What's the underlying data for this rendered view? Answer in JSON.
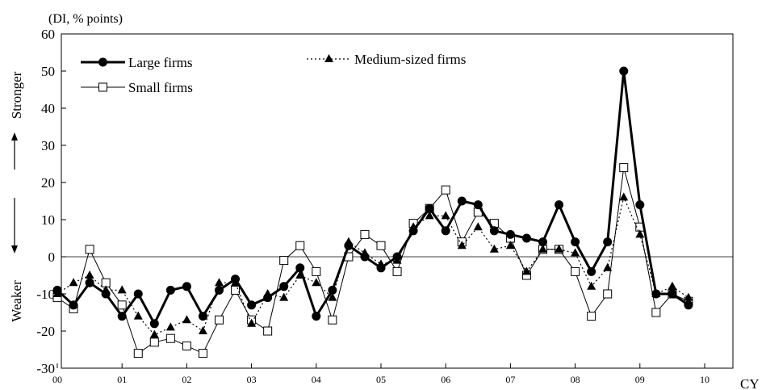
{
  "chart_data": {
    "type": "line",
    "unit_label": "(DI, % points)",
    "xlabel": "CY",
    "ylabel_top": "Stronger",
    "ylabel_bottom": "Weaker",
    "ylim": [
      -30,
      60
    ],
    "yticks": [
      -30,
      -20,
      -10,
      0,
      10,
      20,
      30,
      40,
      50,
      60
    ],
    "year_labels": [
      "00",
      "01",
      "02",
      "03",
      "04",
      "05",
      "06",
      "07",
      "08",
      "09",
      "10"
    ],
    "x_start_year": 2000,
    "points_per_year": 4,
    "grid": false,
    "zero_line": true,
    "legend_position": "top-left",
    "series": [
      {
        "name": "Large firms",
        "style": "solid-thick",
        "marker": "filled-circle",
        "color": "#000000",
        "values": [
          -9,
          -13,
          -7,
          -10,
          -16,
          -10,
          -18,
          -9,
          -8,
          -16,
          -9,
          -6,
          -13,
          -11,
          -8,
          -3,
          -16,
          -9,
          3,
          0,
          -3,
          0,
          7,
          13,
          7,
          15,
          14,
          7,
          6,
          5,
          4,
          14,
          4,
          -4,
          4,
          50,
          14,
          -10,
          -10,
          -13
        ]
      },
      {
        "name": "Medium-sized firms",
        "style": "dotted",
        "marker": "filled-triangle",
        "color": "#000000",
        "values": [
          -10,
          -7,
          -5,
          -9,
          -9,
          -16,
          -21,
          -19,
          -17,
          -20,
          -7,
          -7,
          -18,
          -10,
          -11,
          -5,
          -7,
          -11,
          4,
          1,
          -2,
          -1,
          8,
          11,
          11,
          3,
          8,
          2,
          3,
          -4,
          2,
          2,
          1,
          -8,
          -3,
          16,
          6,
          -10,
          -8,
          -11
        ]
      },
      {
        "name": "Small firms",
        "style": "solid-thin",
        "marker": "open-square",
        "color": "#000000",
        "values": [
          -11,
          -14,
          2,
          -7,
          -13,
          -26,
          -23,
          -22,
          -24,
          -26,
          -17,
          -9,
          -17,
          -20,
          -1,
          3,
          -4,
          -17,
          0,
          6,
          3,
          -4,
          9,
          13,
          18,
          4,
          12,
          9,
          5,
          -5,
          2,
          2,
          -4,
          -16,
          -10,
          24,
          8,
          -15,
          -10,
          -12
        ]
      }
    ]
  }
}
